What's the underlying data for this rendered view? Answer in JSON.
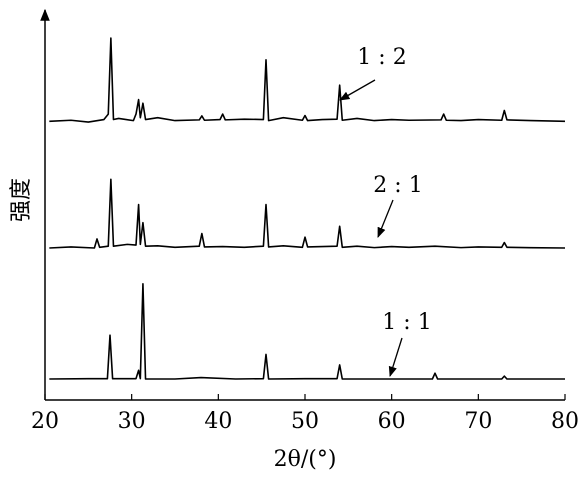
{
  "chart_data": {
    "type": "line",
    "x_label": "2θ/(°)",
    "y_label": "强度",
    "xlim": [
      20,
      80
    ],
    "xticks": [
      20,
      30,
      40,
      50,
      60,
      70,
      80
    ],
    "ylim": [
      0,
      105
    ],
    "series": [
      {
        "name": "1 : 2",
        "color": "#000000",
        "x": [
          20.5,
          23,
          25,
          26.8,
          27.3,
          27.6,
          27.9,
          28.5,
          30.2,
          30.5,
          30.8,
          31.0,
          31.3,
          31.6,
          33,
          35,
          37.8,
          38.1,
          38.4,
          40.2,
          40.5,
          40.8,
          43,
          45.2,
          45.5,
          45.8,
          47.5,
          49.7,
          50,
          50.3,
          52,
          53.7,
          54,
          54.3,
          56,
          58,
          60,
          62,
          65.7,
          66,
          66.3,
          68,
          70,
          72.7,
          73,
          73.3,
          76,
          80
        ],
        "values": [
          77,
          77.3,
          76.8,
          77.5,
          79,
          100,
          77.5,
          77.8,
          77.2,
          79,
          83,
          78,
          82,
          77.5,
          78,
          77.2,
          77.4,
          78.5,
          77.3,
          77.5,
          79,
          77.4,
          77.6,
          77.5,
          94,
          77.2,
          78,
          77.3,
          78.6,
          77.2,
          77.5,
          77.6,
          87,
          77.3,
          77.8,
          77.2,
          77.5,
          77.3,
          77.4,
          79,
          77.3,
          77.2,
          77.5,
          77.3,
          80,
          77.4,
          77.2,
          77
        ]
      },
      {
        "name": "2 : 1",
        "color": "#000000",
        "x": [
          20.5,
          23,
          25.7,
          26,
          26.3,
          27.3,
          27.6,
          27.9,
          29.5,
          30.5,
          30.8,
          31.0,
          31.3,
          31.6,
          33,
          35,
          37.8,
          38.1,
          38.4,
          40.5,
          43,
          45.2,
          45.5,
          45.8,
          47.5,
          49.7,
          50,
          50.3,
          52,
          53.7,
          54,
          54.3,
          56,
          58,
          60,
          62,
          65,
          68,
          70,
          72.7,
          73,
          73.3,
          76,
          80
        ],
        "values": [
          42,
          42.3,
          42,
          44.5,
          42.2,
          42.5,
          61,
          42.5,
          43,
          42.8,
          54,
          43,
          49,
          42.5,
          42.6,
          42.2,
          42.5,
          46,
          42.3,
          42.4,
          42.2,
          42.5,
          54,
          42.3,
          42.6,
          42.2,
          45,
          42.3,
          42.4,
          42.5,
          48,
          42.2,
          42.5,
          42.1,
          42.4,
          42.2,
          42.5,
          42.1,
          42.3,
          42.2,
          43.5,
          42.2,
          42.1,
          42
        ]
      },
      {
        "name": "1 : 1",
        "color": "#000000",
        "x": [
          20.5,
          25,
          27.2,
          27.5,
          27.8,
          30.5,
          30.8,
          31.0,
          31.3,
          31.6,
          35,
          38,
          42,
          45.2,
          45.5,
          45.8,
          50,
          53.7,
          54,
          54.3,
          58,
          62,
          64.7,
          65,
          65.3,
          70,
          72.7,
          73,
          73.3,
          80
        ],
        "values": [
          5.8,
          5.9,
          5.9,
          17.9,
          5.9,
          5.9,
          8.2,
          5.9,
          32.1,
          5.8,
          5.8,
          6.2,
          5.8,
          5.9,
          12.6,
          5.8,
          5.9,
          5.9,
          9.7,
          5.8,
          5.8,
          5.8,
          5.8,
          7.4,
          5.8,
          5.8,
          5.8,
          6.6,
          5.8,
          5.8
        ]
      }
    ]
  }
}
